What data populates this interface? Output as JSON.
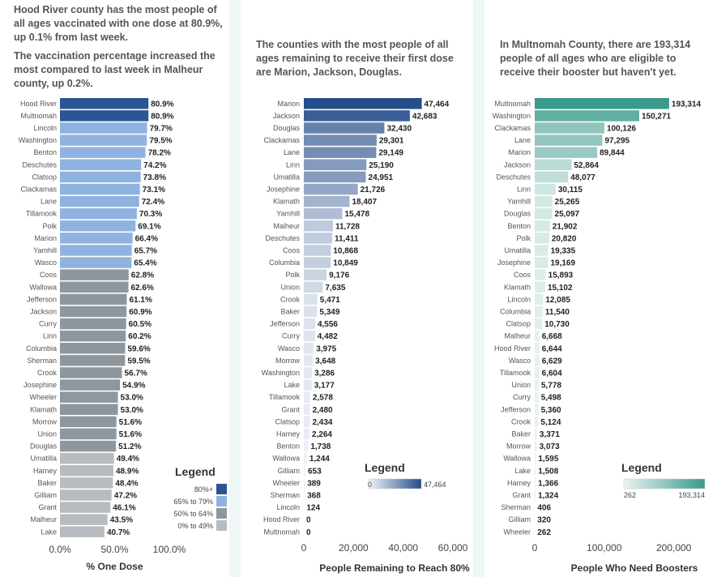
{
  "chart_data": [
    {
      "type": "bar",
      "orientation": "horizontal",
      "title": "Hood River county has the most people of all ages vaccinated with one dose at 80.9%, up 0.1% from last week.",
      "subtitle": "The vaccination percentage increased the most compared to last week in Malheur county, up 0.2%.",
      "xlabel": "% One Dose",
      "xlim": [
        0,
        100
      ],
      "xticks": [
        "0.0%",
        "50.0%",
        "100.0%"
      ],
      "categories": [
        "Hood River",
        "Multnomah",
        "Lincoln",
        "Washington",
        "Benton",
        "Deschutes",
        "Clatsop",
        "Clackamas",
        "Lane",
        "Tillamook",
        "Polk",
        "Marion",
        "Yamhill",
        "Wasco",
        "Coos",
        "Wallowa",
        "Jefferson",
        "Jackson",
        "Curry",
        "Linn",
        "Columbia",
        "Sherman",
        "Crook",
        "Josephine",
        "Wheeler",
        "Klamath",
        "Morrow",
        "Union",
        "Douglas",
        "Umatilla",
        "Harney",
        "Baker",
        "Gilliam",
        "Grant",
        "Malheur",
        "Lake"
      ],
      "values": [
        80.9,
        80.9,
        79.7,
        79.5,
        78.2,
        74.2,
        73.8,
        73.1,
        72.4,
        70.3,
        69.1,
        66.4,
        65.7,
        65.4,
        62.8,
        62.6,
        61.1,
        60.9,
        60.5,
        60.2,
        59.6,
        59.5,
        56.7,
        54.9,
        53.0,
        53.0,
        51.6,
        51.6,
        51.2,
        49.4,
        48.9,
        48.4,
        47.2,
        46.1,
        43.5,
        40.7
      ],
      "labels": [
        "80.9%",
        "80.9%",
        "79.7%",
        "79.5%",
        "78.2%",
        "74.2%",
        "73.8%",
        "73.1%",
        "72.4%",
        "70.3%",
        "69.1%",
        "66.4%",
        "65.7%",
        "65.4%",
        "62.8%",
        "62.6%",
        "61.1%",
        "60.9%",
        "60.5%",
        "60.2%",
        "59.6%",
        "59.5%",
        "56.7%",
        "54.9%",
        "53.0%",
        "53.0%",
        "51.6%",
        "51.6%",
        "51.2%",
        "49.4%",
        "48.9%",
        "48.4%",
        "47.2%",
        "46.1%",
        "43.5%",
        "40.7%"
      ],
      "legend": {
        "title": "Legend",
        "position": "bottom-right",
        "items": [
          {
            "label": "80%+",
            "color": "#2a5592"
          },
          {
            "label": "65% to 79%",
            "color": "#8fb3e0"
          },
          {
            "label": "50% to 64%",
            "color": "#8e979e"
          },
          {
            "label": "0% to 49%",
            "color": "#b8bcc0"
          }
        ]
      }
    },
    {
      "type": "bar",
      "orientation": "horizontal",
      "title": "The counties with the most people of all ages remaining to receive their first dose are Marion, Jackson, Douglas.",
      "xlabel": "People Remaining to Reach 80%",
      "xlim": [
        0,
        60000
      ],
      "xticks": [
        "0",
        "20,000",
        "40,000",
        "60,000"
      ],
      "categories": [
        "Marion",
        "Jackson",
        "Douglas",
        "Clackamas",
        "Lane",
        "Linn",
        "Umatilla",
        "Josephine",
        "Klamath",
        "Yamhill",
        "Malheur",
        "Deschutes",
        "Coos",
        "Columbia",
        "Polk",
        "Union",
        "Crook",
        "Baker",
        "Jefferson",
        "Curry",
        "Wasco",
        "Morrow",
        "Washington",
        "Lake",
        "Tillamook",
        "Grant",
        "Clatsop",
        "Harney",
        "Benton",
        "Wallowa",
        "Gilliam",
        "Wheeler",
        "Sherman",
        "Lincoln",
        "Hood River",
        "Multnomah"
      ],
      "values": [
        47464,
        42683,
        32430,
        29301,
        29149,
        25190,
        24951,
        21726,
        18407,
        15478,
        11728,
        11411,
        10868,
        10849,
        9176,
        7635,
        5471,
        5349,
        4556,
        4482,
        3975,
        3648,
        3286,
        3177,
        2578,
        2480,
        2434,
        2264,
        1738,
        1244,
        653,
        389,
        368,
        124,
        0,
        0
      ],
      "labels": [
        "47,464",
        "42,683",
        "32,430",
        "29,301",
        "29,149",
        "25,190",
        "24,951",
        "21,726",
        "18,407",
        "15,478",
        "11,728",
        "11,411",
        "10,868",
        "10,849",
        "9,176",
        "7,635",
        "5,471",
        "5,349",
        "4,556",
        "4,482",
        "3,975",
        "3,648",
        "3,286",
        "3,177",
        "2,578",
        "2,480",
        "2,434",
        "2,264",
        "1,738",
        "1,244",
        "653",
        "389",
        "368",
        "124",
        "0",
        "0"
      ],
      "color_range": [
        "#f2f4f8",
        "#244d8a"
      ],
      "legend": {
        "title": "Legend",
        "position": "bottom-right",
        "min_label": "0",
        "max_label": "47,464",
        "max": 47464
      }
    },
    {
      "type": "bar",
      "orientation": "horizontal",
      "title": "In Multnomah County, there are 193,314 people of all ages who are eligible to receive their booster but haven't yet.",
      "xlabel": "People Who Need Boosters",
      "xlim": [
        0,
        240000
      ],
      "xticks": [
        "0",
        "100,000",
        "200,000"
      ],
      "categories": [
        "Multnomah",
        "Washington",
        "Clackamas",
        "Lane",
        "Marion",
        "Jackson",
        "Deschutes",
        "Linn",
        "Yamhill",
        "Douglas",
        "Benton",
        "Polk",
        "Umatilla",
        "Josephine",
        "Coos",
        "Klamath",
        "Lincoln",
        "Columbia",
        "Clatsop",
        "Malheur",
        "Hood River",
        "Wasco",
        "Tillamook",
        "Union",
        "Curry",
        "Jefferson",
        "Crook",
        "Baker",
        "Morrow",
        "Wallowa",
        "Lake",
        "Harney",
        "Grant",
        "Sherman",
        "Gilliam",
        "Wheeler"
      ],
      "values": [
        193314,
        150271,
        100126,
        97295,
        89844,
        52864,
        48077,
        30115,
        25265,
        25097,
        21902,
        20820,
        19335,
        19169,
        15893,
        15102,
        12085,
        11540,
        10730,
        6668,
        6644,
        6629,
        6604,
        5778,
        5498,
        5360,
        5124,
        3371,
        3073,
        1595,
        1508,
        1366,
        1324,
        406,
        320,
        262
      ],
      "labels": [
        "193,314",
        "150,271",
        "100,126",
        "97,295",
        "89,844",
        "52,864",
        "48,077",
        "30,115",
        "25,265",
        "25,097",
        "21,902",
        "20,820",
        "19,335",
        "19,169",
        "15,893",
        "15,102",
        "12,085",
        "11,540",
        "10,730",
        "6,668",
        "6,644",
        "6,629",
        "6,604",
        "5,778",
        "5,498",
        "5,360",
        "5,124",
        "3,371",
        "3,073",
        "1,595",
        "1,508",
        "1,366",
        "1,324",
        "406",
        "320",
        "262"
      ],
      "color_range": [
        "#eaf4f2",
        "#3a9a8c"
      ],
      "legend": {
        "title": "Legend",
        "position": "bottom-right",
        "min_label": "262",
        "max_label": "193,314",
        "min": 262,
        "max": 193314
      }
    }
  ]
}
